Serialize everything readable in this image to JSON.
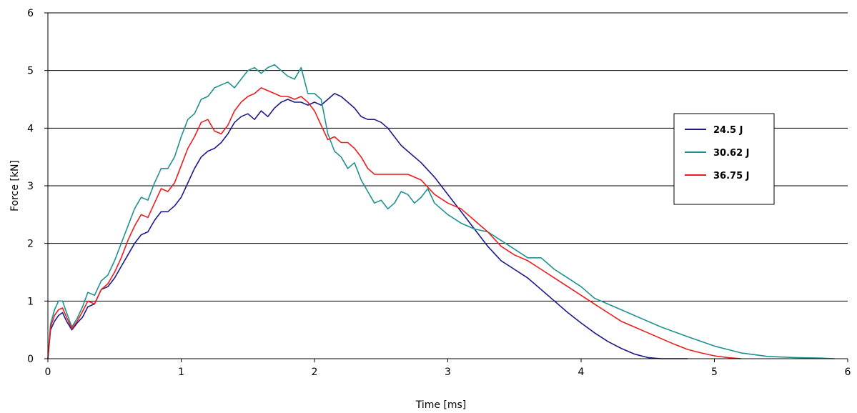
{
  "chart_data": {
    "type": "line",
    "xlabel": "Time [ms]",
    "ylabel": "Force [kN]",
    "xlim": [
      0,
      6
    ],
    "ylim": [
      0,
      6
    ],
    "xticks": [
      0,
      1,
      2,
      3,
      4,
      5,
      6
    ],
    "yticks": [
      0,
      1,
      2,
      3,
      4,
      5,
      6
    ],
    "grid": "horizontal",
    "legend_position": "right",
    "series": [
      {
        "name": "24.5 J",
        "color": "#1a1a8c",
        "x": [
          0,
          0.02,
          0.05,
          0.08,
          0.11,
          0.14,
          0.18,
          0.22,
          0.26,
          0.3,
          0.35,
          0.4,
          0.45,
          0.5,
          0.55,
          0.6,
          0.65,
          0.7,
          0.75,
          0.8,
          0.85,
          0.9,
          0.95,
          1.0,
          1.05,
          1.1,
          1.15,
          1.2,
          1.25,
          1.3,
          1.35,
          1.4,
          1.45,
          1.5,
          1.55,
          1.6,
          1.65,
          1.7,
          1.75,
          1.8,
          1.85,
          1.9,
          1.95,
          2.0,
          2.05,
          2.1,
          2.15,
          2.2,
          2.25,
          2.3,
          2.35,
          2.4,
          2.45,
          2.5,
          2.55,
          2.6,
          2.65,
          2.7,
          2.8,
          2.9,
          3.0,
          3.1,
          3.2,
          3.3,
          3.4,
          3.5,
          3.6,
          3.7,
          3.8,
          3.9,
          4.0,
          4.1,
          4.2,
          4.3,
          4.4,
          4.5,
          4.6,
          4.7,
          4.8
        ],
        "y": [
          0,
          0.5,
          0.65,
          0.75,
          0.8,
          0.65,
          0.5,
          0.62,
          0.72,
          0.9,
          0.95,
          1.2,
          1.25,
          1.4,
          1.6,
          1.8,
          2.0,
          2.15,
          2.2,
          2.4,
          2.55,
          2.55,
          2.65,
          2.8,
          3.05,
          3.3,
          3.5,
          3.6,
          3.65,
          3.75,
          3.9,
          4.1,
          4.2,
          4.25,
          4.15,
          4.3,
          4.2,
          4.35,
          4.45,
          4.5,
          4.45,
          4.45,
          4.4,
          4.45,
          4.4,
          4.5,
          4.6,
          4.55,
          4.45,
          4.35,
          4.2,
          4.15,
          4.15,
          4.1,
          4.0,
          3.85,
          3.7,
          3.6,
          3.4,
          3.15,
          2.85,
          2.55,
          2.25,
          1.95,
          1.7,
          1.55,
          1.4,
          1.2,
          1.0,
          0.8,
          0.62,
          0.45,
          0.3,
          0.18,
          0.08,
          0.02,
          0.0,
          0.0,
          0.0
        ]
      },
      {
        "name": "30.62 J",
        "color": "#1f9090",
        "x": [
          0,
          0.02,
          0.05,
          0.08,
          0.11,
          0.14,
          0.18,
          0.22,
          0.26,
          0.3,
          0.35,
          0.4,
          0.45,
          0.5,
          0.55,
          0.6,
          0.65,
          0.7,
          0.75,
          0.8,
          0.85,
          0.9,
          0.95,
          1.0,
          1.05,
          1.1,
          1.15,
          1.2,
          1.25,
          1.3,
          1.35,
          1.4,
          1.45,
          1.5,
          1.55,
          1.6,
          1.65,
          1.7,
          1.75,
          1.8,
          1.85,
          1.9,
          1.95,
          2.0,
          2.05,
          2.1,
          2.15,
          2.2,
          2.25,
          2.3,
          2.35,
          2.4,
          2.45,
          2.5,
          2.55,
          2.6,
          2.65,
          2.7,
          2.75,
          2.8,
          2.85,
          2.9,
          3.0,
          3.1,
          3.2,
          3.3,
          3.4,
          3.5,
          3.6,
          3.7,
          3.8,
          3.9,
          4.0,
          4.1,
          4.2,
          4.4,
          4.6,
          4.8,
          5.0,
          5.2,
          5.4,
          5.6,
          5.8,
          5.9
        ],
        "y": [
          0,
          0.6,
          0.85,
          1.0,
          1.0,
          0.8,
          0.55,
          0.7,
          0.9,
          1.15,
          1.1,
          1.35,
          1.45,
          1.7,
          2.0,
          2.3,
          2.6,
          2.8,
          2.75,
          3.05,
          3.3,
          3.3,
          3.5,
          3.85,
          4.15,
          4.25,
          4.5,
          4.55,
          4.7,
          4.75,
          4.8,
          4.7,
          4.85,
          5.0,
          5.05,
          4.95,
          5.05,
          5.1,
          5.0,
          4.9,
          4.85,
          5.05,
          4.6,
          4.6,
          4.5,
          3.9,
          3.6,
          3.5,
          3.3,
          3.4,
          3.1,
          2.9,
          2.7,
          2.75,
          2.6,
          2.7,
          2.9,
          2.85,
          2.7,
          2.8,
          2.95,
          2.7,
          2.5,
          2.35,
          2.25,
          2.2,
          2.05,
          1.9,
          1.75,
          1.75,
          1.55,
          1.4,
          1.25,
          1.05,
          0.95,
          0.75,
          0.55,
          0.38,
          0.22,
          0.1,
          0.04,
          0.02,
          0.01,
          0.0
        ]
      },
      {
        "name": "36.75 J",
        "color": "#ee1c1c",
        "x": [
          0,
          0.02,
          0.05,
          0.08,
          0.11,
          0.14,
          0.18,
          0.22,
          0.26,
          0.3,
          0.35,
          0.4,
          0.45,
          0.5,
          0.55,
          0.6,
          0.65,
          0.7,
          0.75,
          0.8,
          0.85,
          0.9,
          0.95,
          1.0,
          1.05,
          1.1,
          1.15,
          1.2,
          1.25,
          1.3,
          1.35,
          1.4,
          1.45,
          1.5,
          1.55,
          1.6,
          1.65,
          1.7,
          1.75,
          1.8,
          1.85,
          1.9,
          1.95,
          2.0,
          2.05,
          2.1,
          2.15,
          2.2,
          2.25,
          2.3,
          2.35,
          2.4,
          2.45,
          2.5,
          2.55,
          2.6,
          2.7,
          2.8,
          2.9,
          3.0,
          3.1,
          3.2,
          3.3,
          3.4,
          3.5,
          3.6,
          3.7,
          3.8,
          3.9,
          4.0,
          4.1,
          4.2,
          4.3,
          4.4,
          4.5,
          4.6,
          4.7,
          4.8,
          4.9,
          5.0,
          5.1,
          5.2
        ],
        "y": [
          0,
          0.55,
          0.75,
          0.85,
          0.88,
          0.72,
          0.52,
          0.65,
          0.82,
          1.0,
          0.95,
          1.2,
          1.3,
          1.5,
          1.75,
          2.05,
          2.3,
          2.5,
          2.45,
          2.7,
          2.95,
          2.9,
          3.05,
          3.35,
          3.65,
          3.85,
          4.1,
          4.15,
          3.95,
          3.9,
          4.05,
          4.3,
          4.45,
          4.55,
          4.6,
          4.7,
          4.65,
          4.6,
          4.55,
          4.55,
          4.5,
          4.55,
          4.45,
          4.3,
          4.05,
          3.8,
          3.85,
          3.75,
          3.75,
          3.65,
          3.5,
          3.3,
          3.2,
          3.2,
          3.2,
          3.2,
          3.2,
          3.1,
          2.85,
          2.7,
          2.6,
          2.4,
          2.2,
          1.95,
          1.8,
          1.7,
          1.55,
          1.4,
          1.25,
          1.1,
          0.95,
          0.8,
          0.65,
          0.55,
          0.45,
          0.35,
          0.25,
          0.16,
          0.1,
          0.05,
          0.02,
          0.0
        ]
      }
    ]
  }
}
